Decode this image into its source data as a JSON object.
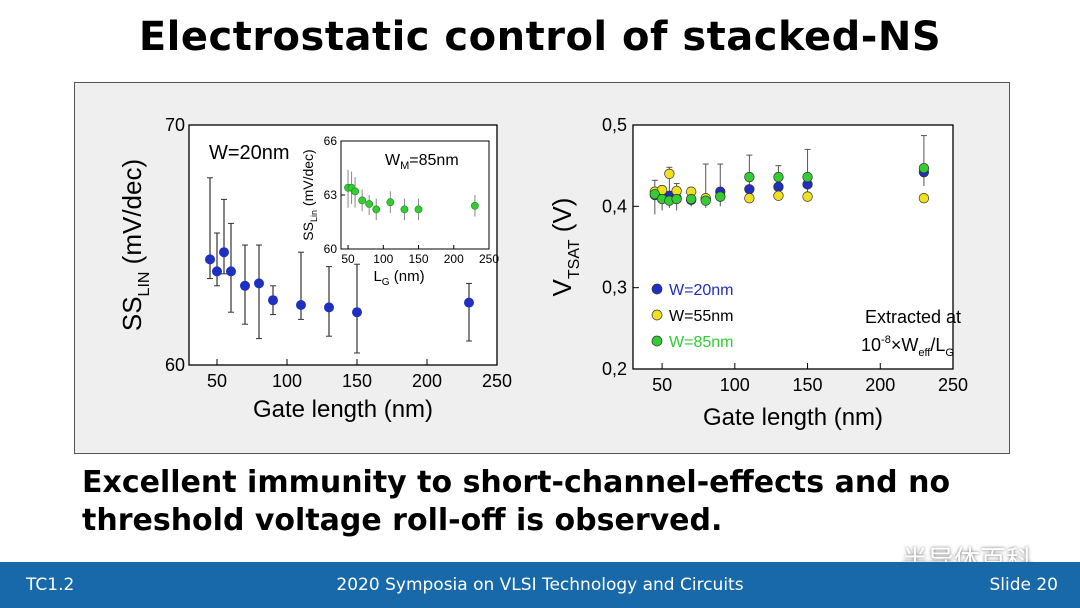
{
  "slide": {
    "title": "Electrostatic control of stacked-NS",
    "conclusion_line1": "Excellent immunity to short-channel-effects and no",
    "conclusion_line2": "threshold voltage roll-off is observed.",
    "footer_left": "TC1.2",
    "footer_center": "2020 Symposia on VLSI Technology and Circuits",
    "footer_right": "Slide 20",
    "watermark": "半导体百科",
    "watermark_icon": "wechat-icon"
  },
  "chart_data": [
    {
      "type": "scatter",
      "title": "",
      "annotation": "W=20nm",
      "xlabel": "Gate length (nm)",
      "ylabel_main": "SS",
      "ylabel_sub": "LIN",
      "ylabel_unit": " (mV/dec)",
      "xlim": [
        30,
        250
      ],
      "ylim": [
        60,
        70
      ],
      "xticks": [
        50,
        100,
        150,
        200,
        250
      ],
      "yticks": [
        60,
        70
      ],
      "colors": {
        "point": "#1f2fbf",
        "error": "#333333"
      },
      "series": [
        {
          "points": [
            {
              "x": 45,
              "y": 64.4,
              "lo": 63.6,
              "hi": 67.8
            },
            {
              "x": 50,
              "y": 63.9,
              "lo": 63.3,
              "hi": 65.5
            },
            {
              "x": 55,
              "y": 64.7,
              "lo": 63.8,
              "hi": 66.9
            },
            {
              "x": 60,
              "y": 63.9,
              "lo": 62.2,
              "hi": 65.9
            },
            {
              "x": 70,
              "y": 63.3,
              "lo": 61.7,
              "hi": 65.0
            },
            {
              "x": 80,
              "y": 63.4,
              "lo": 61.1,
              "hi": 65.0
            },
            {
              "x": 90,
              "y": 62.7,
              "lo": 62.1,
              "hi": 63.3
            },
            {
              "x": 110,
              "y": 62.5,
              "lo": 61.9,
              "hi": 64.7
            },
            {
              "x": 130,
              "y": 62.4,
              "lo": 61.2,
              "hi": 64.1
            },
            {
              "x": 150,
              "y": 62.2,
              "lo": 60.5,
              "hi": 64.2
            },
            {
              "x": 230,
              "y": 62.6,
              "lo": 61.0,
              "hi": 63.4
            }
          ]
        }
      ]
    },
    {
      "type": "scatter",
      "title": "",
      "annotation_main": "W",
      "annotation_sub": "M",
      "annotation_rest": "=85nm",
      "xlabel_main": "L",
      "xlabel_sub": "G",
      "xlabel_unit": " (nm)",
      "ylabel_main": "SS",
      "ylabel_sub": "Lin",
      "ylabel_unit": " (mV/dec)",
      "xlim": [
        40,
        250
      ],
      "ylim": [
        60,
        66
      ],
      "xticks": [
        50,
        100,
        150,
        200,
        250
      ],
      "yticks": [
        60,
        63,
        66
      ],
      "colors": {
        "point": "#33cc33",
        "error": "#888888"
      },
      "series": [
        {
          "points": [
            {
              "x": 50,
              "y": 63.4,
              "lo": 62.3,
              "hi": 64.4
            },
            {
              "x": 55,
              "y": 63.4,
              "lo": 62.5,
              "hi": 64.3
            },
            {
              "x": 60,
              "y": 63.2,
              "lo": 62.3,
              "hi": 64.0
            },
            {
              "x": 70,
              "y": 62.7,
              "lo": 62.1,
              "hi": 63.3
            },
            {
              "x": 80,
              "y": 62.5,
              "lo": 61.9,
              "hi": 63.0
            },
            {
              "x": 90,
              "y": 62.2,
              "lo": 61.6,
              "hi": 62.8
            },
            {
              "x": 110,
              "y": 62.6,
              "lo": 62.0,
              "hi": 63.2
            },
            {
              "x": 130,
              "y": 62.2,
              "lo": 61.6,
              "hi": 62.8
            },
            {
              "x": 150,
              "y": 62.2,
              "lo": 61.6,
              "hi": 62.8
            },
            {
              "x": 230,
              "y": 62.4,
              "lo": 61.8,
              "hi": 63.0
            }
          ]
        }
      ]
    },
    {
      "type": "scatter",
      "title": "",
      "xlabel": "Gate length (nm)",
      "ylabel_main": "V",
      "ylabel_sub": "TSAT",
      "ylabel_unit": " (V)",
      "xlim": [
        30,
        250
      ],
      "ylim": [
        0.2,
        0.5
      ],
      "xticks": [
        50,
        100,
        150,
        200,
        250
      ],
      "yticks": [
        0.2,
        0.3,
        0.4,
        0.5
      ],
      "yticklabels": [
        "0,2",
        "0,3",
        "0,4",
        "0,5"
      ],
      "note_line1": "Extracted at",
      "note_line2": "10",
      "note_exp": "-8",
      "note_rest": "×W",
      "note_sub": "eff",
      "note_rest2": "/L",
      "note_sub2": "G",
      "series": [
        {
          "name": "W=20nm",
          "color": "#1f2fbf",
          "label_color": "#1f2fbf",
          "points": [
            {
              "x": 45,
              "y": 0.414
            },
            {
              "x": 50,
              "y": 0.412
            },
            {
              "x": 55,
              "y": 0.413
            },
            {
              "x": 60,
              "y": 0.41
            },
            {
              "x": 70,
              "y": 0.408
            },
            {
              "x": 80,
              "y": 0.409
            },
            {
              "x": 90,
              "y": 0.418
            },
            {
              "x": 110,
              "y": 0.421
            },
            {
              "x": 130,
              "y": 0.424
            },
            {
              "x": 150,
              "y": 0.427
            },
            {
              "x": 230,
              "y": 0.442
            }
          ]
        },
        {
          "name": "W=55nm",
          "color": "#f0e020",
          "label_color": "#000000",
          "points": [
            {
              "x": 45,
              "y": 0.418
            },
            {
              "x": 50,
              "y": 0.42
            },
            {
              "x": 55,
              "y": 0.44
            },
            {
              "x": 60,
              "y": 0.419
            },
            {
              "x": 70,
              "y": 0.418
            },
            {
              "x": 80,
              "y": 0.41
            },
            {
              "x": 90,
              "y": 0.412
            },
            {
              "x": 110,
              "y": 0.41
            },
            {
              "x": 130,
              "y": 0.413
            },
            {
              "x": 150,
              "y": 0.412
            },
            {
              "x": 230,
              "y": 0.41
            }
          ]
        },
        {
          "name": "W=85nm",
          "color": "#33cc33",
          "label_color": "#33cc33",
          "points": [
            {
              "x": 45,
              "y": 0.415
            },
            {
              "x": 50,
              "y": 0.409
            },
            {
              "x": 55,
              "y": 0.407
            },
            {
              "x": 60,
              "y": 0.409
            },
            {
              "x": 70,
              "y": 0.409
            },
            {
              "x": 80,
              "y": 0.407
            },
            {
              "x": 90,
              "y": 0.412
            },
            {
              "x": 110,
              "y": 0.436
            },
            {
              "x": 130,
              "y": 0.436
            },
            {
              "x": 150,
              "y": 0.436
            },
            {
              "x": 230,
              "y": 0.447
            }
          ]
        }
      ],
      "errorbars": [
        {
          "x": 45,
          "lo": 0.39,
          "hi": 0.432
        },
        {
          "x": 50,
          "lo": 0.395,
          "hi": 0.425
        },
        {
          "x": 55,
          "lo": 0.398,
          "hi": 0.448
        },
        {
          "x": 60,
          "lo": 0.395,
          "hi": 0.428
        },
        {
          "x": 70,
          "lo": 0.4,
          "hi": 0.42
        },
        {
          "x": 80,
          "lo": 0.398,
          "hi": 0.452
        },
        {
          "x": 90,
          "lo": 0.4,
          "hi": 0.452
        },
        {
          "x": 110,
          "lo": 0.41,
          "hi": 0.463
        },
        {
          "x": 130,
          "lo": 0.412,
          "hi": 0.45
        },
        {
          "x": 150,
          "lo": 0.413,
          "hi": 0.47
        },
        {
          "x": 230,
          "lo": 0.425,
          "hi": 0.487
        }
      ]
    }
  ]
}
